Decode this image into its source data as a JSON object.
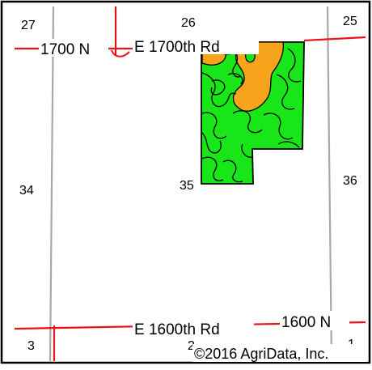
{
  "map": {
    "section_numbers": {
      "s27": "27",
      "s26": "26",
      "s25": "25",
      "s34": "34",
      "s35": "35",
      "s36": "36",
      "s3": "3",
      "s2": "2",
      "s1": "1"
    },
    "roads": {
      "north_short": "1700 N",
      "north_long": "E 1700th Rd",
      "south_long": "E 1600th Rd",
      "south_short": "1600 N"
    },
    "copyright": "©2016 AgriData, Inc.",
    "colors": {
      "road": "#e8141c",
      "section_line": "#a8a8a8",
      "field_green": "#19e619",
      "field_orange": "#f7a31c",
      "soil_boundary": "#000000",
      "frame": "#000000"
    }
  }
}
